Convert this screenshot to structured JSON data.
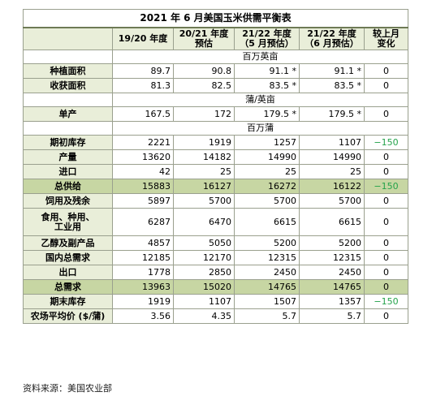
{
  "title": "2021 年 6 月美国玉米供需平衡表",
  "headers": {
    "c1": "19/20 年度",
    "c2_line1": "20/21 年度",
    "c2_line2": "预估",
    "c3_line1": "21/22 年度",
    "c3_line2": "（5 月预估）",
    "c4_line1": "21/22 年度",
    "c4_line2": "（6 月预估）",
    "c5_line1": "较上月",
    "c5_line2": "变化"
  },
  "units": {
    "u1": "百万英亩",
    "u2": "蒲/英亩",
    "u3": "百万蒲"
  },
  "rows": [
    {
      "label": "种植面积",
      "v1": "89.7",
      "v2": "90.8",
      "v3": "91.1 *",
      "v4": "91.1 *",
      "chg": "0"
    },
    {
      "label": "收获面积",
      "v1": "81.3",
      "v2": "82.5",
      "v3": "83.5 *",
      "v4": "83.5 *",
      "chg": "0"
    },
    {
      "label": "单产",
      "v1": "167.5",
      "v2": "172",
      "v3": "179.5 *",
      "v4": "179.5 *",
      "chg": "0"
    },
    {
      "label": "期初库存",
      "v1": "2221",
      "v2": "1919",
      "v3": "1257",
      "v4": "1107",
      "chg": "−150"
    },
    {
      "label": "产量",
      "v1": "13620",
      "v2": "14182",
      "v3": "14990",
      "v4": "14990",
      "chg": "0"
    },
    {
      "label": "进口",
      "v1": "42",
      "v2": "25",
      "v3": "25",
      "v4": "25",
      "chg": "0"
    },
    {
      "label": "总供给",
      "v1": "15883",
      "v2": "16127",
      "v3": "16272",
      "v4": "16122",
      "chg": "−150"
    },
    {
      "label": "饲用及残余",
      "v1": "5897",
      "v2": "5700",
      "v3": "5700",
      "v4": "5700",
      "chg": "0"
    },
    {
      "label_line1": "食用、种用、",
      "label_line2": "工业用",
      "v1": "6287",
      "v2": "6470",
      "v3": "6615",
      "v4": "6615",
      "chg": "0"
    },
    {
      "label": "乙醇及副产品",
      "v1": "4857",
      "v2": "5050",
      "v3": "5200",
      "v4": "5200",
      "chg": "0"
    },
    {
      "label": "国内总需求",
      "v1": "12185",
      "v2": "12170",
      "v3": "12315",
      "v4": "12315",
      "chg": "0"
    },
    {
      "label": "出口",
      "v1": "1778",
      "v2": "2850",
      "v3": "2450",
      "v4": "2450",
      "chg": "0"
    },
    {
      "label": "总需求",
      "v1": "13963",
      "v2": "15020",
      "v3": "14765",
      "v4": "14765",
      "chg": "0"
    },
    {
      "label": "期末库存",
      "v1": "1919",
      "v2": "1107",
      "v3": "1507",
      "v4": "1357",
      "chg": "−150"
    },
    {
      "label": "农场平均价 ($/蒲)",
      "v1": "3.56",
      "v2": "4.35",
      "v3": "5.7",
      "v4": "5.7",
      "chg": "0"
    }
  ],
  "source": "资料来源：美国农业部",
  "colors": {
    "header_bg": "#e9eed9",
    "highlight_bg": "#c7d6a3",
    "negative": "#24a34a",
    "border": "#9aa08e"
  }
}
